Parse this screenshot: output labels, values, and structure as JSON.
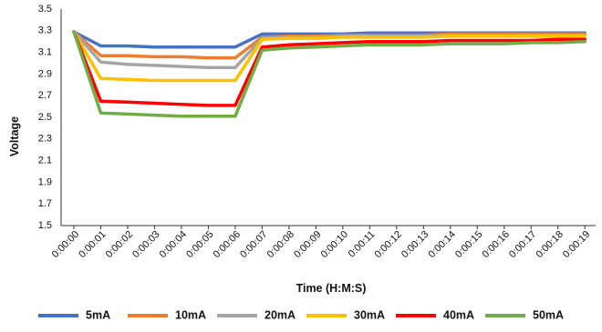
{
  "chart_data": {
    "type": "line",
    "title": "",
    "xlabel": "Time (H:M:S)",
    "ylabel": "Voltage",
    "ylim": [
      1.5,
      3.5
    ],
    "yticks": [
      "1.5",
      "1.7",
      "1.9",
      "2.1",
      "2.3",
      "2.5",
      "2.7",
      "2.9",
      "3.1",
      "3.3",
      "3.5"
    ],
    "ytick_values": [
      1.5,
      1.7,
      1.9,
      2.1,
      2.3,
      2.5,
      2.7,
      2.9,
      3.1,
      3.3,
      3.5
    ],
    "categories": [
      "0:00:00",
      "0:00:01",
      "0:00:02",
      "0:00:03",
      "0:00:04",
      "0:00:05",
      "0:00:06",
      "0:00:07",
      "0:00:08",
      "0:00:09",
      "0:00:10",
      "0:00:11",
      "0:00:12",
      "0:00:13",
      "0:00:14",
      "0:00:15",
      "0:00:16",
      "0:00:17",
      "0:00:18",
      "0:00:19"
    ],
    "grid": false,
    "legend_position": "bottom",
    "series": [
      {
        "name": "5mA",
        "color": "#4472C4",
        "values": [
          3.29,
          3.16,
          3.16,
          3.15,
          3.15,
          3.15,
          3.15,
          3.27,
          3.27,
          3.27,
          3.27,
          3.28,
          3.28,
          3.28,
          3.28,
          3.28,
          3.28,
          3.28,
          3.28,
          3.28
        ]
      },
      {
        "name": "10mA",
        "color": "#ED7D31",
        "values": [
          3.29,
          3.07,
          3.07,
          3.06,
          3.06,
          3.05,
          3.05,
          3.24,
          3.25,
          3.25,
          3.26,
          3.26,
          3.26,
          3.26,
          3.27,
          3.27,
          3.27,
          3.27,
          3.27,
          3.27
        ]
      },
      {
        "name": "20mA",
        "color": "#A5A5A5",
        "values": [
          3.29,
          3.01,
          2.99,
          2.98,
          2.97,
          2.96,
          2.96,
          3.23,
          3.24,
          3.24,
          3.25,
          3.25,
          3.25,
          3.25,
          3.26,
          3.26,
          3.26,
          3.26,
          3.26,
          3.26
        ]
      },
      {
        "name": "30mA",
        "color": "#FFC000",
        "values": [
          3.29,
          2.86,
          2.85,
          2.84,
          2.84,
          2.84,
          2.84,
          3.22,
          3.23,
          3.23,
          3.24,
          3.24,
          3.24,
          3.24,
          3.25,
          3.25,
          3.25,
          3.25,
          3.25,
          3.25
        ]
      },
      {
        "name": "40mA",
        "color": "#FF0000",
        "values": [
          3.29,
          2.65,
          2.64,
          2.63,
          2.62,
          2.61,
          2.61,
          3.15,
          3.17,
          3.18,
          3.19,
          3.2,
          3.2,
          3.2,
          3.21,
          3.21,
          3.21,
          3.21,
          3.22,
          3.22
        ]
      },
      {
        "name": "50mA",
        "color": "#70AD47",
        "values": [
          3.29,
          2.54,
          2.53,
          2.52,
          2.51,
          2.51,
          2.51,
          3.12,
          3.14,
          3.15,
          3.16,
          3.17,
          3.17,
          3.17,
          3.18,
          3.18,
          3.18,
          3.19,
          3.19,
          3.2
        ]
      }
    ]
  }
}
